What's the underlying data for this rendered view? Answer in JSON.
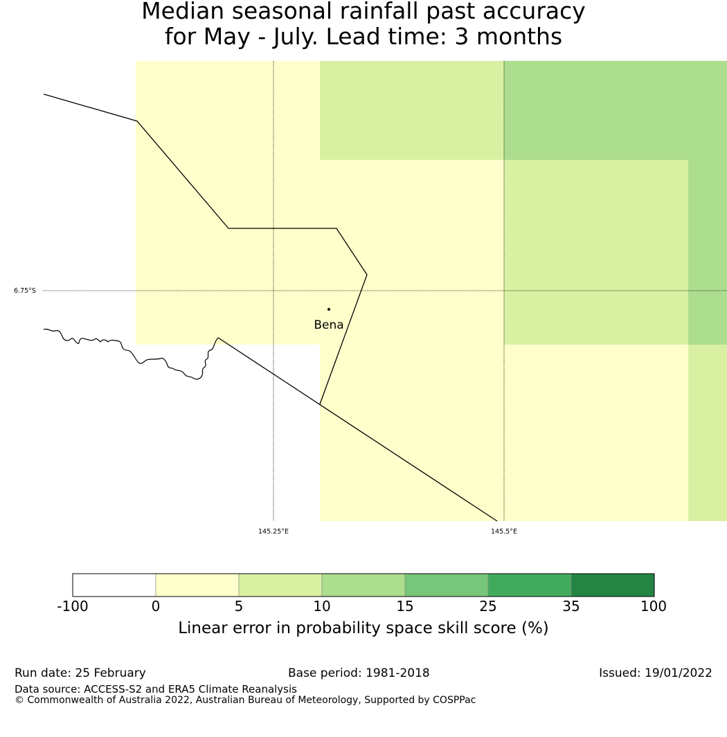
{
  "title": {
    "line1": "Median seasonal rainfall past accuracy",
    "line2": "for May - July. Lead time: 3 months"
  },
  "map": {
    "place_label": "Bena",
    "lat_label": "6.75°S",
    "lon_labels": [
      "145.25°E",
      "145.5°E"
    ],
    "cells": [
      {
        "category": "0-5"
      },
      {
        "category": "5-10"
      },
      {
        "category": "10-15"
      },
      {
        "category": "10-15"
      },
      {
        "category": "0-5"
      },
      {
        "category": "0-5"
      },
      {
        "category": "5-10"
      },
      {
        "category": "10-15"
      },
      {
        "category": "0-5"
      },
      {
        "category": "0-5"
      },
      {
        "category": "5-10"
      },
      {
        "category": "10-15"
      },
      {
        "category": "-100-0"
      },
      {
        "category": "0-5"
      },
      {
        "category": "0-5"
      },
      {
        "category": "5-10"
      }
    ]
  },
  "colorbar": {
    "ticks": [
      "-100",
      "0",
      "5",
      "10",
      "15",
      "25",
      "35",
      "100"
    ],
    "colors": [
      "#ffffff",
      "#ffffcc",
      "#d9f0a3",
      "#addd8e",
      "#78c679",
      "#41ab5d",
      "#238443"
    ],
    "label": "Linear error in probability space skill score (%)"
  },
  "footer": {
    "run_date": "Run date: 25 February",
    "base_period": "Base period: 1981-2018",
    "issued": "Issued: 19/01/2022",
    "data_source": "Data source: ACCESS-S2 and ERA5 Climate Reanalysis",
    "copyright": "© Commonwealth of Australia 2022, Australian Bureau of Meteorology, Supported by COSPPac"
  }
}
